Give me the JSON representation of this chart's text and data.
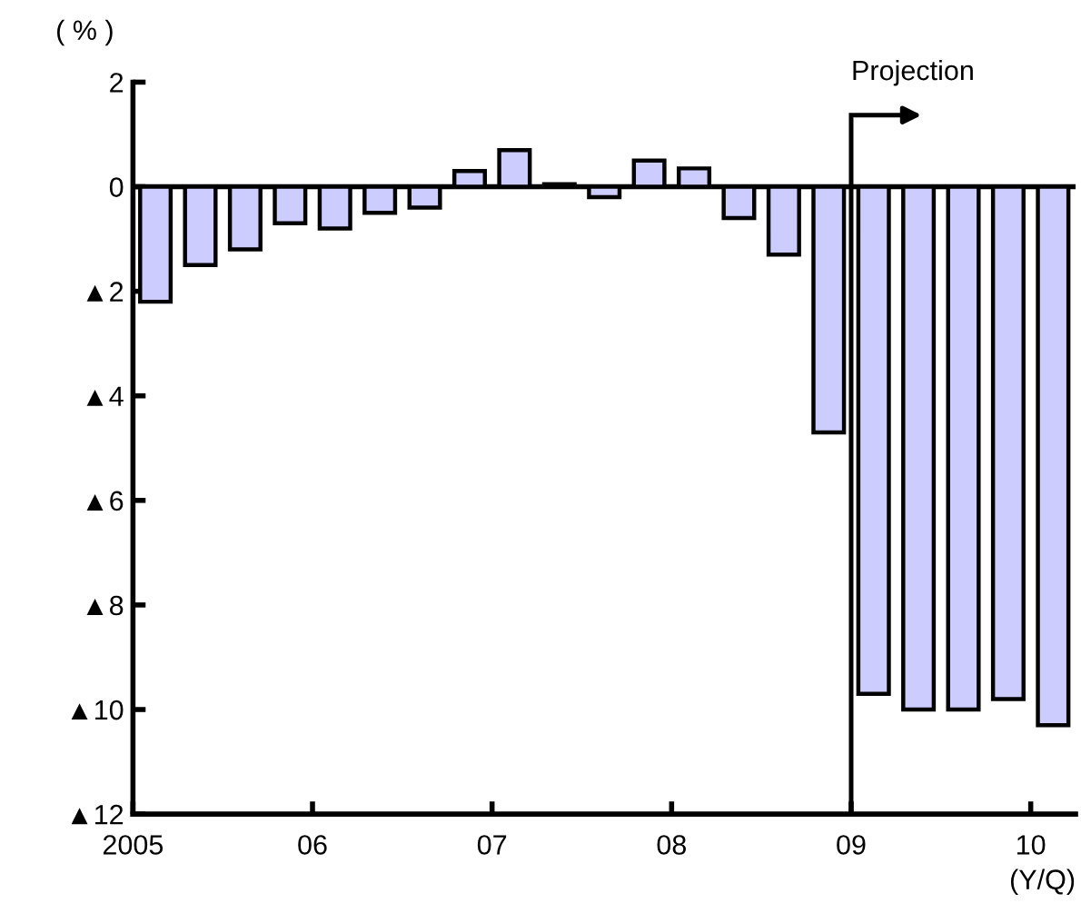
{
  "chart_data": {
    "type": "bar",
    "ylabel": "( % )",
    "xlabel": "(Y/Q)",
    "x": [
      2005.125,
      2005.375,
      2005.625,
      2005.875,
      2006.125,
      2006.375,
      2006.625,
      2006.875,
      2007.125,
      2007.375,
      2007.625,
      2007.875,
      2008.125,
      2008.375,
      2008.625,
      2008.875,
      2009.125,
      2009.375,
      2009.625,
      2009.875,
      2010.125
    ],
    "values": [
      -2.2,
      -1.5,
      -1.2,
      -0.7,
      -0.8,
      -0.5,
      -0.4,
      0.3,
      0.7,
      0.05,
      -0.2,
      0.5,
      0.35,
      -0.6,
      -1.3,
      -4.7,
      -9.7,
      -10.0,
      -10.0,
      -9.8,
      -10.3
    ],
    "color": "#ccccff",
    "xlim": [
      2005,
      2010.25
    ],
    "xticks": [
      {
        "value": 2005,
        "label": "2005"
      },
      {
        "value": 2006,
        "label": "06"
      },
      {
        "value": 2007,
        "label": "07"
      },
      {
        "value": 2008,
        "label": "08"
      },
      {
        "value": 2009,
        "label": "09"
      },
      {
        "value": 2010,
        "label": "10"
      }
    ],
    "ylim": [
      -12,
      2
    ],
    "yticks": [
      {
        "value": 2,
        "label": "2"
      },
      {
        "value": 0,
        "label": "0"
      },
      {
        "value": -2,
        "label": "▲2"
      },
      {
        "value": -4,
        "label": "▲4"
      },
      {
        "value": -6,
        "label": "▲6"
      },
      {
        "value": -8,
        "label": "▲8"
      },
      {
        "value": -10,
        "label": "▲10"
      },
      {
        "value": -12,
        "label": "▲12"
      }
    ],
    "ref_lines": [
      {
        "axis": "x",
        "value": 2009,
        "label": "Projection",
        "color": "#000000"
      }
    ],
    "grid": false
  }
}
